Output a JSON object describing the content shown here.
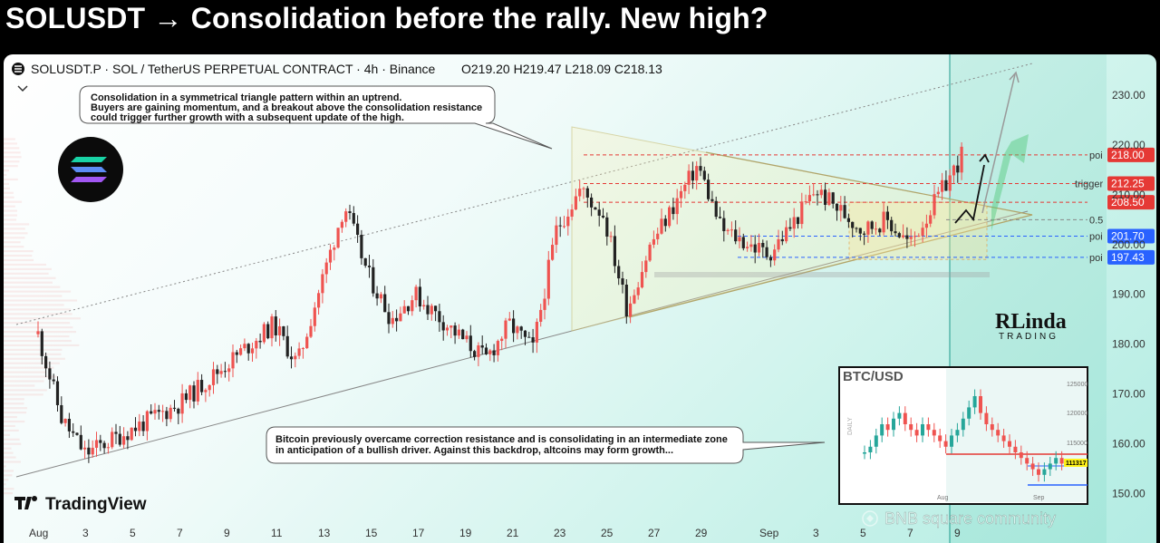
{
  "headline": "SOLUSDT → Consolidation before the rally. New high?",
  "header": {
    "symbol_line": "SOLUSDT.P · SOL / TetherUS PERPETUAL CONTRACT · 4h · Binance",
    "ohlc": "O219.20  H219.47  L218.09  C218.13"
  },
  "annotations": {
    "top_lines": [
      "Consolidation in a symmetrical triangle pattern within an uptrend.",
      "Buyers are gaining momentum, and a breakout above the consolidation resistance",
      "could trigger further growth with a subsequent update of the high."
    ],
    "bottom_lines": [
      "Bitcoin previously overcame correction resistance and is consolidating in an intermediate zone",
      "in anticipation of a bullish driver. Against this backdrop, altcoins may form growth..."
    ]
  },
  "levels": [
    {
      "label": "poi",
      "value": "218.00",
      "price": 218.0,
      "color": "#e53935"
    },
    {
      "label": "trigger",
      "value": "212.25",
      "price": 212.25,
      "color": "#e53935"
    },
    {
      "label": "",
      "value": "208.50",
      "price": 208.5,
      "color": "#e53935"
    },
    {
      "label": "0.5",
      "value": "",
      "price": 205.0,
      "color": "#888888"
    },
    {
      "label": "poi",
      "value": "201.70",
      "price": 201.7,
      "color": "#2962ff"
    },
    {
      "label": "poi",
      "value": "197.43",
      "price": 197.43,
      "color": "#2962ff"
    }
  ],
  "chart_data": {
    "type": "candlestick",
    "title": "SOLUSDT.P · SOL / TetherUS PERPETUAL CONTRACT · 4h · Binance",
    "ylim": [
      145,
      236
    ],
    "y_ticks": [
      "230.00",
      "220.00",
      "210.00",
      "200.00",
      "190.00",
      "180.00",
      "170.00",
      "160.00",
      "150.00"
    ],
    "x_ticks": [
      "Aug",
      "3",
      "5",
      "7",
      "9",
      "11",
      "13",
      "15",
      "17",
      "19",
      "21",
      "23",
      "25",
      "27",
      "29",
      "Sep",
      "3",
      "5",
      "7",
      "9"
    ],
    "price_path": [
      {
        "date": "Aug 1",
        "price": 182
      },
      {
        "date": "Aug 2",
        "price": 165
      },
      {
        "date": "Aug 3",
        "price": 158
      },
      {
        "date": "Aug 5",
        "price": 163
      },
      {
        "date": "Aug 7",
        "price": 168
      },
      {
        "date": "Aug 9",
        "price": 176
      },
      {
        "date": "Aug 11",
        "price": 184
      },
      {
        "date": "Aug 12",
        "price": 176
      },
      {
        "date": "Aug 14",
        "price": 208
      },
      {
        "date": "Aug 15",
        "price": 194
      },
      {
        "date": "Aug 16",
        "price": 185
      },
      {
        "date": "Aug 17",
        "price": 190
      },
      {
        "date": "Aug 19",
        "price": 181
      },
      {
        "date": "Aug 20",
        "price": 177
      },
      {
        "date": "Aug 21",
        "price": 184
      },
      {
        "date": "Aug 22",
        "price": 179
      },
      {
        "date": "Aug 23",
        "price": 203
      },
      {
        "date": "Aug 24",
        "price": 211
      },
      {
        "date": "Aug 25",
        "price": 206
      },
      {
        "date": "Aug 26",
        "price": 187
      },
      {
        "date": "Aug 27",
        "price": 200
      },
      {
        "date": "Aug 29",
        "price": 216
      },
      {
        "date": "Aug 30",
        "price": 203
      },
      {
        "date": "Sep 1",
        "price": 198
      },
      {
        "date": "Sep 2",
        "price": 204
      },
      {
        "date": "Sep 3",
        "price": 211
      },
      {
        "date": "Sep 4",
        "price": 207
      },
      {
        "date": "Sep 5",
        "price": 203
      },
      {
        "date": "Sep 6",
        "price": 205
      },
      {
        "date": "Sep 7",
        "price": 200
      },
      {
        "date": "Sep 8",
        "price": 208
      },
      {
        "date": "Sep 9",
        "price": 216
      },
      {
        "date": "Sep 9 end",
        "price": 218.13
      }
    ],
    "inset": {
      "title": "BTC/USD",
      "y_ticks": [
        "125000",
        "120000",
        "115000",
        "111317"
      ],
      "x_ticks": [
        "Aug",
        "Sep"
      ],
      "side_label": "DAILY",
      "current": "111317"
    }
  },
  "brand": {
    "tradingview": "TradingView",
    "linda_top": "RLinda",
    "linda_bottom": "TRADING"
  },
  "watermark": "BNB square community",
  "colors": {
    "up": "#ef5350",
    "down": "#222222",
    "up_alt": "#26a69a",
    "axis_red": "#e53935",
    "axis_blue": "#2962ff"
  }
}
